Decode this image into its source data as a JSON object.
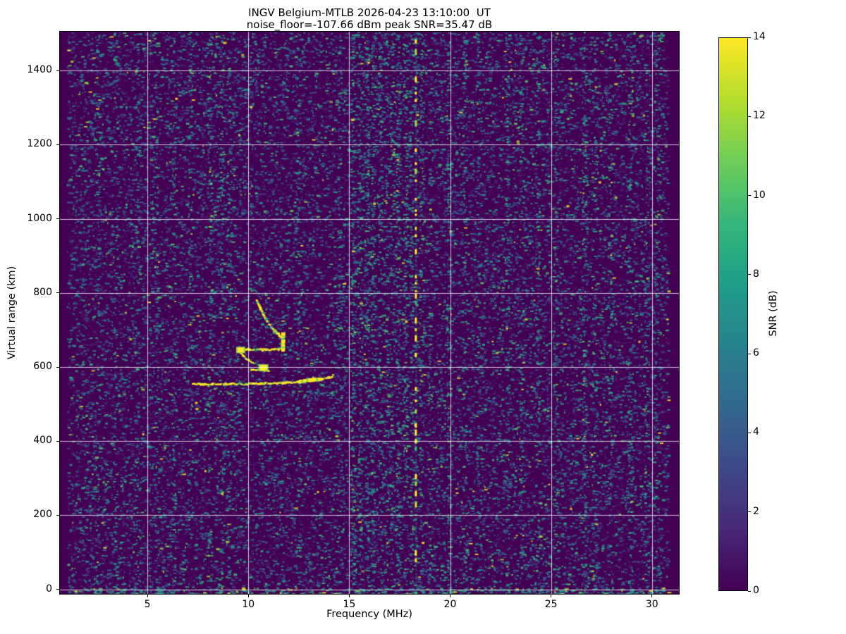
{
  "station": "INGV Belgium-MTLB",
  "timestamp_ut": "2026-04-23 13:10:00",
  "noise_floor_dbm": -107.66,
  "peak_snr_db": 35.47,
  "chart_data": {
    "type": "heatmap",
    "title": "INGV Belgium-MTLB 2026-04-23 13:10:00  UT",
    "subtitle": "noise_floor=-107.66 dBm peak SNR=35.47 dB",
    "xlabel": "Frequency (MHz)",
    "ylabel": "Virtual range (km)",
    "xlim": [
      0.665,
      31.335
    ],
    "ylim": [
      -12,
      1505
    ],
    "xticks": [
      5,
      10,
      15,
      20,
      25,
      30
    ],
    "yticks": [
      0,
      200,
      400,
      600,
      800,
      1000,
      1200,
      1400
    ],
    "grid": true,
    "grid_color": "rgba(255,255,255,0.75)",
    "background_color": "#440154",
    "colormap": "viridis",
    "colorbar": {
      "label": "SNR (dB)",
      "min": 0,
      "max": 14,
      "ticks": [
        0,
        2,
        4,
        6,
        8,
        10,
        12,
        14
      ],
      "stops": [
        "#440154",
        "#482878",
        "#3e4989",
        "#31688e",
        "#26828e",
        "#1f9e89",
        "#35b779",
        "#6ece58",
        "#b5de2b",
        "#fde725"
      ]
    },
    "edge_blank_bands_mhz": [
      [
        0.665,
        1.0
      ],
      [
        30.78,
        31.335
      ]
    ],
    "rfi_line": {
      "freq_mhz": 18.3,
      "style": "dashed",
      "color": "#fde725"
    },
    "interference_streaks": [
      [
        2.5,
        0.18
      ],
      [
        3.4,
        0.18
      ],
      [
        4.45,
        0.2
      ],
      [
        5.4,
        0.18
      ],
      [
        6.3,
        0.18
      ],
      [
        7.1,
        0.18
      ],
      [
        8.05,
        0.28
      ],
      [
        8.65,
        0.22
      ],
      [
        9.0,
        0.2
      ],
      [
        12.45,
        0.18
      ],
      [
        14.5,
        0.2
      ],
      [
        15.15,
        0.45
      ],
      [
        15.5,
        0.28
      ],
      [
        15.85,
        0.42
      ],
      [
        16.15,
        0.38
      ],
      [
        16.5,
        0.28
      ],
      [
        16.8,
        0.24
      ],
      [
        17.1,
        0.28
      ],
      [
        17.4,
        0.42
      ],
      [
        17.75,
        0.38
      ],
      [
        18.05,
        0.3
      ],
      [
        18.55,
        0.28
      ],
      [
        19.0,
        0.2
      ],
      [
        19.9,
        0.32
      ],
      [
        20.7,
        0.22
      ],
      [
        21.4,
        0.2
      ],
      [
        22.8,
        0.28
      ],
      [
        23.5,
        0.2
      ],
      [
        24.3,
        0.24
      ],
      [
        25.2,
        0.2
      ],
      [
        26.6,
        0.36
      ],
      [
        27.1,
        0.24
      ],
      [
        27.9,
        0.2
      ],
      [
        28.9,
        0.28
      ],
      [
        29.7,
        0.24
      ],
      [
        30.2,
        0.2
      ]
    ],
    "traces": [
      {
        "name": "f-layer-main-trace",
        "width": 3,
        "points": [
          [
            7.25,
            554
          ],
          [
            8.2,
            553
          ],
          [
            9.0,
            554
          ],
          [
            9.9,
            553
          ],
          [
            10.8,
            555
          ],
          [
            11.7,
            556
          ],
          [
            12.4,
            559
          ],
          [
            13.0,
            563
          ],
          [
            13.6,
            567
          ],
          [
            14.05,
            571
          ],
          [
            14.2,
            576
          ]
        ]
      },
      {
        "name": "f-trace-bright-section",
        "width": 5,
        "points": [
          [
            12.55,
            560
          ],
          [
            13.05,
            563
          ],
          [
            13.6,
            567
          ]
        ]
      },
      {
        "name": "cusp-horizontal",
        "width": 3,
        "points": [
          [
            9.55,
            649
          ],
          [
            10.2,
            647
          ],
          [
            10.9,
            646
          ],
          [
            11.5,
            647
          ],
          [
            11.72,
            650
          ]
        ]
      },
      {
        "name": "cusp-vertical",
        "width": 5,
        "points": [
          [
            11.72,
            645
          ],
          [
            11.73,
            688
          ]
        ]
      },
      {
        "name": "upper-arc",
        "width": 3,
        "points": [
          [
            10.42,
            778
          ],
          [
            10.6,
            757
          ],
          [
            10.85,
            730
          ],
          [
            11.15,
            706
          ],
          [
            11.45,
            690
          ],
          [
            11.68,
            678
          ]
        ]
      },
      {
        "name": "ghost-arc",
        "width": 2,
        "ghost": true,
        "points": [
          [
            10.6,
            786
          ],
          [
            10.9,
            756
          ],
          [
            11.2,
            732
          ],
          [
            11.45,
            714
          ]
        ]
      },
      {
        "name": "wiggle",
        "width": 2.5,
        "points": [
          [
            9.6,
            640
          ],
          [
            9.75,
            630
          ],
          [
            9.9,
            622
          ],
          [
            10.1,
            615
          ],
          [
            10.35,
            610
          ]
        ]
      },
      {
        "name": "tail",
        "width": 2.5,
        "points": [
          [
            10.15,
            592
          ],
          [
            10.55,
            591
          ],
          [
            11.0,
            590
          ]
        ]
      },
      {
        "name": "bright-blob",
        "type": "blob",
        "center": [
          10.75,
          598
        ],
        "size": [
          10,
          8
        ]
      },
      {
        "name": "cusp-left-blob",
        "type": "blob",
        "center": [
          9.62,
          646
        ],
        "size": [
          9,
          7
        ]
      }
    ],
    "noise_palette": [
      [
        "#472a7a",
        0.26
      ],
      [
        "#3b528b",
        0.22
      ],
      [
        "#33638d",
        0.14
      ],
      [
        "#2c728e",
        0.12
      ],
      [
        "#21918c",
        0.12
      ],
      [
        "#27ad81",
        0.07
      ],
      [
        "#42be71",
        0.04
      ],
      [
        "#5ec962",
        0.015
      ],
      [
        "#aadc32",
        0.008
      ],
      [
        "#fde725",
        0.007
      ]
    ],
    "streak_palette": [
      [
        "#21918c",
        0.35
      ],
      [
        "#2c728e",
        0.25
      ],
      [
        "#27ad81",
        0.2
      ],
      [
        "#35b779",
        0.12
      ],
      [
        "#5ec962",
        0.05
      ],
      [
        "#aadc32",
        0.03
      ]
    ],
    "trace_palette": [
      [
        "#fde725",
        0.62
      ],
      [
        "#e5e419",
        0.1
      ],
      [
        "#c2df23",
        0.1
      ],
      [
        "#7ad151",
        0.09
      ],
      [
        "#35b779",
        0.05
      ],
      [
        "#2a788e",
        0.04
      ]
    ],
    "rfi_palette": [
      [
        "#fde725",
        0.6
      ],
      [
        "#d8e219",
        0.12
      ],
      [
        "#9bd93c",
        0.12
      ],
      [
        "#35b779",
        0.16
      ]
    ]
  }
}
